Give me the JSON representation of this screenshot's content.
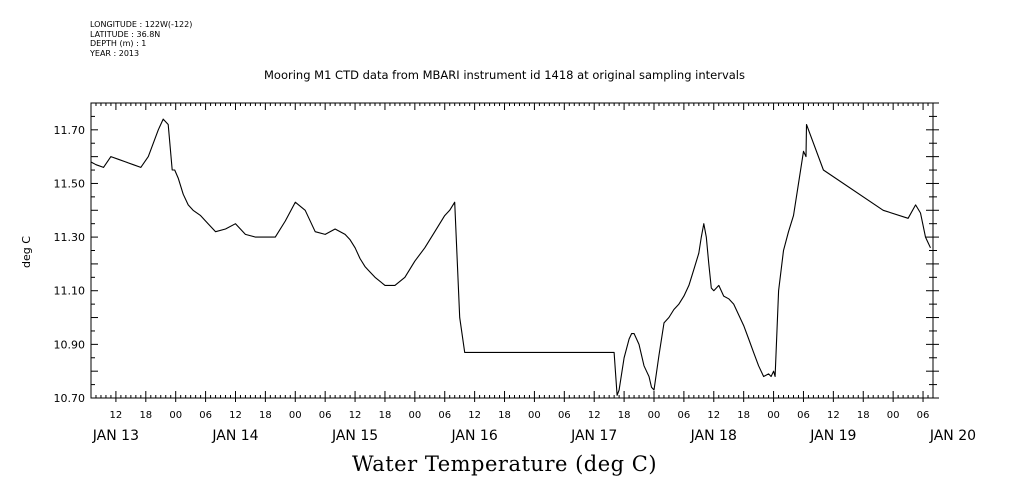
{
  "meta": {
    "longitude": "LONGITUDE : 122W(-122)",
    "latitude": "LATITUDE : 36.8N",
    "depth": "DEPTH (m) : 1",
    "year": "YEAR : 2013"
  },
  "chart_data": {
    "type": "line",
    "title": "Mooring M1 CTD data from MBARI instrument id 1418 at original sampling intervals",
    "ylabel": "deg C",
    "xlabel": "Water Temperature (deg C)",
    "ylim": [
      10.7,
      11.8
    ],
    "xlim_hours": [
      7.0,
      176.0
    ],
    "y_ticks": [
      10.7,
      10.9,
      11.1,
      11.3,
      11.5,
      11.7
    ],
    "y_tick_labels": [
      "10.70",
      "10.90",
      "11.10",
      "11.30",
      "11.50",
      "11.70"
    ],
    "x_hour_labels": [
      "12",
      "18",
      "00",
      "06",
      "12",
      "18",
      "00",
      "06",
      "12",
      "18",
      "00",
      "06",
      "12",
      "18",
      "00",
      "06",
      "12",
      "18",
      "00",
      "06",
      "12",
      "18",
      "00",
      "06",
      "12",
      "18",
      "00",
      "06"
    ],
    "x_day_labels": [
      "JAN 13",
      "JAN 14",
      "JAN 15",
      "JAN 16",
      "JAN 17",
      "JAN 18",
      "JAN 19",
      "JAN 20"
    ],
    "grid": false,
    "series": [
      {
        "x_unit": "hours from JAN 13 00",
        "x": [
          7.0,
          8.0,
          9.5,
          11.0,
          12.5,
          14.0,
          15.5,
          17.0,
          18.5,
          19.5,
          20.5,
          21.5,
          22.5,
          23.3,
          23.8,
          24.5,
          25.5,
          26.5,
          27.5,
          29.0,
          30.5,
          32.0,
          34.0,
          36.0,
          38.0,
          40.0,
          42.0,
          44.0,
          46.0,
          48.0,
          50.0,
          52.0,
          54.0,
          56.0,
          58.0,
          59.0,
          60.0,
          61.0,
          62.0,
          63.0,
          64.0,
          66.0,
          68.0,
          70.0,
          72.0,
          74.0,
          76.0,
          78.0,
          79.0,
          80.0,
          81.0,
          82.0,
          83.0,
          84.5,
          86.0,
          87.5,
          88.5,
          88.6,
          110.0,
          112.0,
          112.6,
          113.0,
          114.0,
          115.0,
          115.5,
          116.0,
          117.0,
          118.0,
          118.5,
          119.0,
          119.5,
          120.0,
          121.0,
          122.0,
          123.0,
          124.0,
          125.0,
          126.0,
          127.0,
          128.0,
          129.0,
          129.5,
          130.0,
          130.5,
          131.0,
          131.5,
          132.0,
          133.0,
          134.0,
          135.0,
          136.0,
          137.0,
          138.0,
          139.0,
          140.0,
          141.0,
          142.0,
          143.0,
          143.5,
          144.0,
          144.3,
          145.0,
          146.0,
          147.0,
          148.0,
          149.0,
          150.0,
          150.5,
          150.6,
          154.0,
          166.0,
          171.0,
          172.5,
          173.5,
          174.5,
          175.0,
          175.5
        ],
        "y": [
          11.58,
          11.57,
          11.56,
          11.6,
          11.59,
          11.58,
          11.57,
          11.56,
          11.6,
          11.65,
          11.7,
          11.74,
          11.72,
          11.55,
          11.55,
          11.52,
          11.46,
          11.42,
          11.4,
          11.38,
          11.35,
          11.32,
          11.33,
          11.35,
          11.31,
          11.3,
          11.3,
          11.3,
          11.36,
          11.43,
          11.4,
          11.32,
          11.31,
          11.33,
          11.31,
          11.29,
          11.26,
          11.22,
          11.19,
          11.17,
          11.15,
          11.12,
          11.12,
          11.15,
          11.21,
          11.26,
          11.32,
          11.38,
          11.4,
          11.43,
          11.0,
          10.87,
          10.87,
          10.87,
          10.87,
          10.87,
          10.87,
          10.87,
          10.87,
          10.87,
          10.71,
          10.73,
          10.85,
          10.92,
          10.94,
          10.94,
          10.9,
          10.82,
          10.8,
          10.78,
          10.74,
          10.73,
          10.86,
          10.98,
          11.0,
          11.03,
          11.05,
          11.08,
          11.12,
          11.18,
          11.24,
          11.3,
          11.35,
          11.3,
          11.2,
          11.11,
          11.1,
          11.12,
          11.08,
          11.07,
          11.05,
          11.01,
          10.97,
          10.92,
          10.87,
          10.82,
          10.78,
          10.79,
          10.78,
          10.8,
          10.78,
          11.1,
          11.25,
          11.32,
          11.38,
          11.5,
          11.62,
          11.6,
          11.72,
          11.55,
          11.4,
          11.37,
          11.42,
          11.39,
          11.3,
          11.28,
          11.26
        ]
      }
    ]
  }
}
